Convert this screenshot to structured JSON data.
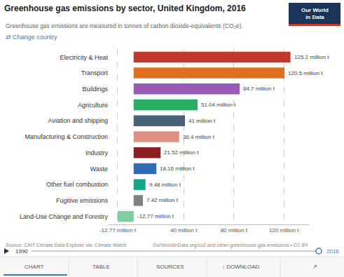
{
  "chart_data": {
    "type": "bar",
    "orientation": "horizontal",
    "title": "Greenhouse gas emissions by sector, United Kingdom, 2016",
    "subtitle": "Greenhouse gas emissions are measured in tonnes of carbon dioxide-equivalents (CO₂e).",
    "annotations": [
      "⇄ Change country",
      "Our World\nin Data",
      "Source: CAIT Climate Data Explorer via. Climate Watch",
      "OurWorldInData.org/co2-and-other-greenhouse-gas-emissions • CC BY",
      "1990",
      "2016",
      "CHART",
      "TABLE",
      "SOURCES",
      "↓ DOWNLOAD",
      "↗"
    ],
    "categories": [
      "Electricity & Heat",
      "Transport",
      "Buildings",
      "Agriculture",
      "Aviation and shipping",
      "Manufacturing & Construction",
      "Industry",
      "Waste",
      "Other fuel combustion",
      "Fugitive emissions",
      "Land-Use Change and Forestry"
    ],
    "values": [
      125.2,
      120.5,
      84.7,
      51.04,
      41.0,
      36.4,
      21.52,
      18.16,
      9.48,
      7.42,
      -12.77
    ],
    "value_labels": [
      "125.2 million t",
      "120.5 million t",
      "84.7 million t",
      "51.04 million t",
      "41 million t",
      "36.4 million t",
      "21.52 million t",
      "18.16 million t",
      "9.48 million t",
      "7.42 million t",
      "-12.77 million t"
    ],
    "colors": [
      "#c0392b",
      "#e07020",
      "#9b59b6",
      "#27ae60",
      "#4a6278",
      "#e09080",
      "#8b2020",
      "#2e6db4",
      "#17a589",
      "#808080",
      "#7dcea0"
    ],
    "data_labels": true,
    "xlim": [
      -20,
      140
    ],
    "xticks": [
      {
        "value": -12.77,
        "label": "-12.77 million t"
      },
      {
        "value": 40,
        "label": "40 million t"
      },
      {
        "value": 80,
        "label": "80 million t"
      },
      {
        "value": 120,
        "label": "120 million t"
      }
    ],
    "grid": true
  }
}
